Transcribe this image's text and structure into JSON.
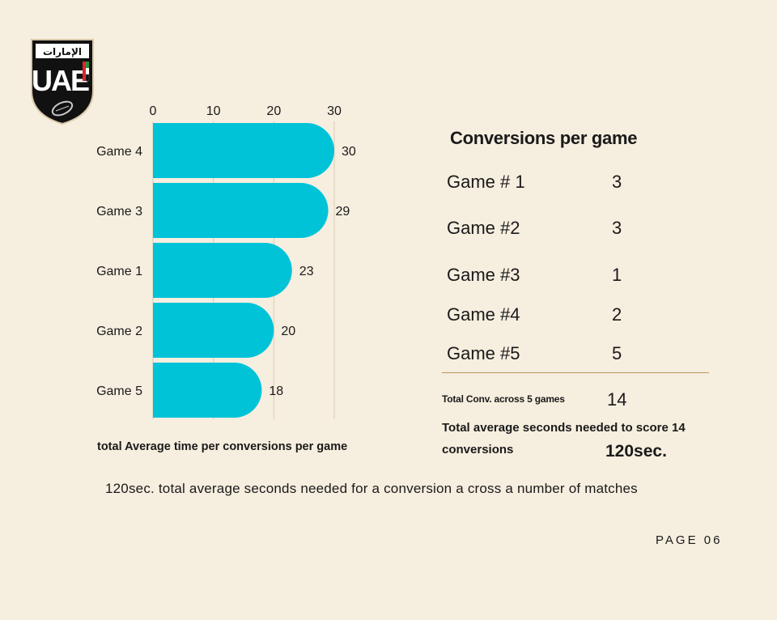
{
  "logo": {
    "arabic_text": "الإمارات",
    "letters": "UAE"
  },
  "chart_data": {
    "type": "bar",
    "orientation": "horizontal",
    "categories": [
      "Game 4",
      "Game 3",
      "Game 1",
      "Game 2",
      "Game 5"
    ],
    "values": [
      30,
      29,
      23,
      20,
      18
    ],
    "xlim": [
      0,
      30
    ],
    "xticks": [
      0,
      10,
      20,
      30
    ],
    "xaxis_position": "top",
    "grid": true,
    "bar_color": "#00c3d8",
    "xlabel": "total Average time per conversions per game"
  },
  "table": {
    "title": "Conversions per game",
    "rows": [
      {
        "game": "Game # 1",
        "value": "3"
      },
      {
        "game": "Game #2",
        "value": "3"
      },
      {
        "game": "Game #3",
        "value": "1"
      },
      {
        "game": "Game #4",
        "value": "2"
      },
      {
        "game": "Game #5",
        "value": "5"
      }
    ],
    "total_conv_label": "Total Conv. across 5 games",
    "total_conv_value": "14",
    "total_seconds_label": "Total average seconds needed to score 14 conversions",
    "total_seconds_value": "120sec."
  },
  "footnote": "120sec. total average seconds needed for a conversion a cross a number of matches",
  "page_number": "PAGE 06",
  "colors": {
    "background": "#f6eedf",
    "bar": "#00c3d8",
    "divider": "#b9975b",
    "text": "#1a1a1a"
  }
}
